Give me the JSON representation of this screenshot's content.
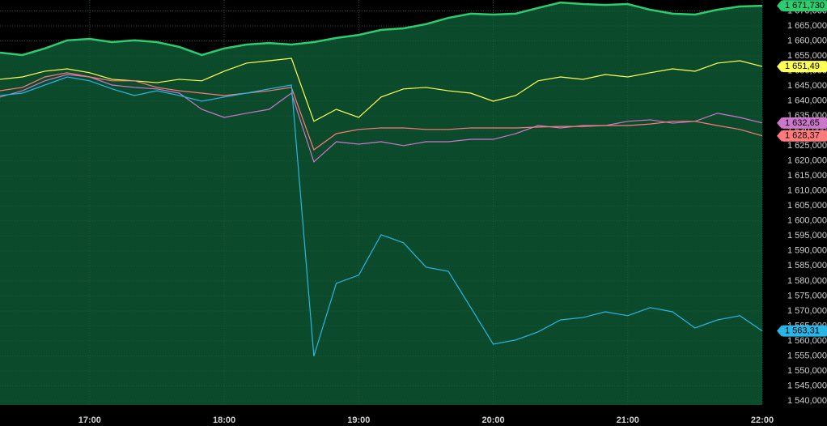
{
  "chart_data": {
    "type": "line",
    "categories": [
      "16:20",
      "16:30",
      "16:40",
      "16:50",
      "17:00",
      "17:10",
      "17:20",
      "17:30",
      "17:40",
      "17:50",
      "18:00",
      "18:10",
      "18:20",
      "18:30",
      "18:40",
      "18:50",
      "19:00",
      "19:10",
      "19:20",
      "19:30",
      "19:40",
      "19:50",
      "20:00",
      "20:10",
      "20:20",
      "20:30",
      "20:40",
      "20:50",
      "21:00",
      "21:10",
      "21:20",
      "21:30",
      "21:40",
      "21:50",
      "22:00"
    ],
    "xticks": [
      "17:00",
      "18:00",
      "19:00",
      "20:00",
      "21:00",
      "22:00"
    ],
    "ylim": [
      1538650,
      1673650
    ],
    "yticks": [
      {
        "value": 1540000,
        "label": "1 540,000"
      },
      {
        "value": 1545000,
        "label": "1 545,000"
      },
      {
        "value": 1550000,
        "label": "1 550,000"
      },
      {
        "value": 1555000,
        "label": "1 555,000"
      },
      {
        "value": 1560000,
        "label": "1 560,000"
      },
      {
        "value": 1565000,
        "label": "1 565,000"
      },
      {
        "value": 1570000,
        "label": "1 570,000"
      },
      {
        "value": 1575000,
        "label": "1 575,000"
      },
      {
        "value": 1580000,
        "label": "1 580,000"
      },
      {
        "value": 1585000,
        "label": "1 585,000"
      },
      {
        "value": 1590000,
        "label": "1 590,000"
      },
      {
        "value": 1595000,
        "label": "1 595,000"
      },
      {
        "value": 1600000,
        "label": "1 600,000"
      },
      {
        "value": 1605000,
        "label": "1 605,000"
      },
      {
        "value": 1610000,
        "label": "1 610,000"
      },
      {
        "value": 1615000,
        "label": "1 615,000"
      },
      {
        "value": 1620000,
        "label": "1 620,000"
      },
      {
        "value": 1625000,
        "label": "1 625,000"
      },
      {
        "value": 1630000,
        "label": "1 630,000"
      },
      {
        "value": 1635000,
        "label": "1 635,000"
      },
      {
        "value": 1640000,
        "label": "1 640,000"
      },
      {
        "value": 1645000,
        "label": "1 645,000"
      },
      {
        "value": 1650000,
        "label": "1 650,000"
      },
      {
        "value": 1655000,
        "label": "1 655,000"
      },
      {
        "value": 1660000,
        "label": "1 660,000"
      },
      {
        "value": 1665000,
        "label": "1 665,000"
      },
      {
        "value": 1670000,
        "label": "1 670,000"
      }
    ],
    "grid": true,
    "series": [
      {
        "color": "#2ecc71",
        "fill": "#0b4a2b",
        "values": [
          1656100,
          1655300,
          1657500,
          1660200,
          1660700,
          1659600,
          1660200,
          1659600,
          1658000,
          1655300,
          1657500,
          1658800,
          1659300,
          1658800,
          1659600,
          1661000,
          1662000,
          1663700,
          1664200,
          1665600,
          1667700,
          1669100,
          1668800,
          1669100,
          1671000,
          1672800,
          1672300,
          1672000,
          1672300,
          1670400,
          1669100,
          1668800,
          1670400,
          1671500,
          1671730
        ],
        "value_labels": [
          null,
          null,
          null,
          null,
          null,
          null,
          null,
          null,
          null,
          null,
          null,
          null,
          null,
          null,
          null,
          null,
          null,
          null,
          null,
          null,
          null,
          null,
          null,
          null,
          null,
          null,
          null,
          null,
          null,
          null,
          null,
          null,
          null,
          null,
          "1 671,730"
        ]
      },
      {
        "color": "#ffff55",
        "values": [
          1647200,
          1648000,
          1649900,
          1650700,
          1649400,
          1647200,
          1646700,
          1646100,
          1647200,
          1646700,
          1649900,
          1652600,
          1653400,
          1654200,
          1633200,
          1637200,
          1634500,
          1641300,
          1644000,
          1644500,
          1643400,
          1642600,
          1639900,
          1641800,
          1646700,
          1648000,
          1647200,
          1648800,
          1648000,
          1649400,
          1650700,
          1649900,
          1652600,
          1653400,
          1651490
        ],
        "value_labels": [
          null,
          null,
          null,
          null,
          null,
          null,
          null,
          null,
          null,
          null,
          null,
          null,
          null,
          null,
          null,
          null,
          null,
          null,
          null,
          null,
          null,
          null,
          null,
          null,
          null,
          null,
          null,
          null,
          null,
          null,
          null,
          null,
          null,
          null,
          "1 651,49"
        ]
      },
      {
        "color": "#cc77cc",
        "values": [
          1641300,
          1643400,
          1646700,
          1648800,
          1648000,
          1645300,
          1644500,
          1644000,
          1642600,
          1637200,
          1634500,
          1635900,
          1637200,
          1642600,
          1619700,
          1626400,
          1625600,
          1626400,
          1625100,
          1626400,
          1626400,
          1627200,
          1627200,
          1629100,
          1631800,
          1631000,
          1631800,
          1631800,
          1633200,
          1633700,
          1632600,
          1633200,
          1635900,
          1634500,
          1632650
        ],
        "value_labels": [
          null,
          null,
          null,
          null,
          null,
          null,
          null,
          null,
          null,
          null,
          null,
          null,
          null,
          null,
          null,
          null,
          null,
          null,
          null,
          null,
          null,
          null,
          null,
          null,
          null,
          null,
          null,
          null,
          null,
          null,
          null,
          null,
          null,
          null,
          "1 632,65"
        ]
      },
      {
        "color": "#ff7b7b",
        "values": [
          1643400,
          1644500,
          1648000,
          1649400,
          1648000,
          1646700,
          1646700,
          1644500,
          1643400,
          1642600,
          1641800,
          1642600,
          1643400,
          1644500,
          1623700,
          1629100,
          1630500,
          1631000,
          1631000,
          1630500,
          1630500,
          1631000,
          1631000,
          1631000,
          1631300,
          1631500,
          1631500,
          1631800,
          1631800,
          1632300,
          1633200,
          1633200,
          1631800,
          1630500,
          1628370
        ],
        "value_labels": [
          null,
          null,
          null,
          null,
          null,
          null,
          null,
          null,
          null,
          null,
          null,
          null,
          null,
          null,
          null,
          null,
          null,
          null,
          null,
          null,
          null,
          null,
          null,
          null,
          null,
          null,
          null,
          null,
          null,
          null,
          null,
          null,
          null,
          null,
          "1 628,37"
        ]
      },
      {
        "color": "#29b6e6",
        "values": [
          1641800,
          1642600,
          1645300,
          1648000,
          1646700,
          1644000,
          1641800,
          1643400,
          1641800,
          1639900,
          1641300,
          1642600,
          1644000,
          1645300,
          1554900,
          1579200,
          1581900,
          1595400,
          1592700,
          1584600,
          1583200,
          1571100,
          1558900,
          1560300,
          1563000,
          1567000,
          1567800,
          1569700,
          1568400,
          1571100,
          1569700,
          1564300,
          1567000,
          1568400,
          1563310
        ],
        "value_labels": [
          null,
          null,
          null,
          null,
          null,
          null,
          null,
          null,
          null,
          null,
          null,
          null,
          null,
          null,
          null,
          null,
          null,
          null,
          null,
          null,
          null,
          null,
          null,
          null,
          null,
          null,
          null,
          null,
          null,
          null,
          null,
          null,
          null,
          null,
          "1 563,31"
        ]
      }
    ]
  }
}
